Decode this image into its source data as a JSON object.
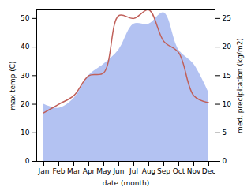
{
  "chart_data": {
    "type": "line",
    "x_label": "date (month)",
    "y_label": "max temp (C)",
    "y2_label": "med. precipitation (kg/m2)",
    "categories": [
      "Jan",
      "Feb",
      "Mar",
      "Apr",
      "May",
      "Jun",
      "Jul",
      "Aug",
      "Sep",
      "Oct",
      "Nov",
      "Dec"
    ],
    "series": [
      {
        "type": "area",
        "axis": "y2",
        "color": "#b3c2f2",
        "values": [
          10,
          9.3,
          11,
          15,
          17,
          19.5,
          24,
          24,
          26,
          19.5,
          17,
          12
        ]
      },
      {
        "type": "line",
        "axis": "y",
        "color": "#c0605a",
        "values": [
          17,
          20,
          23,
          30,
          31,
          51,
          50,
          53,
          42,
          38,
          23,
          20.5
        ]
      }
    ],
    "ylim": [
      0,
      53
    ],
    "yticks": [
      0,
      10,
      20,
      30,
      40,
      50
    ],
    "y2lim": [
      0,
      26.5
    ],
    "y2ticks": [
      0,
      5,
      10,
      15,
      20,
      25
    ]
  }
}
